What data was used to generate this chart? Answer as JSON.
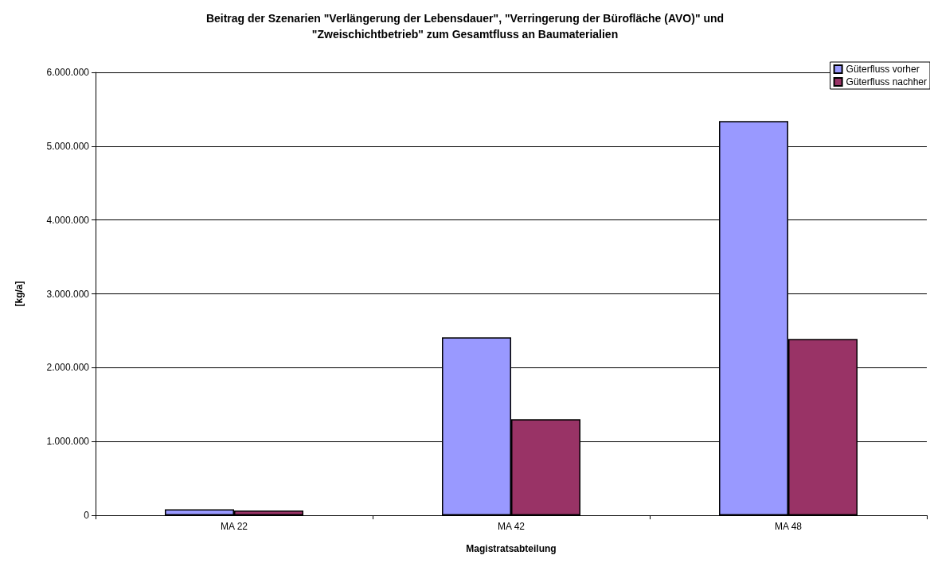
{
  "chart_data": {
    "type": "bar",
    "title": "Beitrag der Szenarien \"Verlängerung der Lebensdauer\", \"Verringerung der Bürofläche (AVO)\" und\n\"Zweischichtbetrieb\" zum Gesamtfluss an Baumaterialien",
    "xlabel": "Magistratsabteilung",
    "ylabel": "[kg/a]",
    "categories": [
      "MA 22",
      "MA 42",
      "MA 48"
    ],
    "series": [
      {
        "name": "Güterfluss vorher",
        "color": "#9999ff",
        "values": [
          80000,
          2410000,
          5340000
        ]
      },
      {
        "name": "Güterfluss nachher",
        "color": "#993366",
        "values": [
          65000,
          1300000,
          2390000
        ]
      }
    ],
    "ylim": [
      0,
      6000000
    ],
    "yticks": [
      0,
      {
        "value": 1000000,
        "label": "1.000.000"
      },
      {
        "value": 2000000,
        "label": "2.000.000"
      },
      {
        "value": 3000000,
        "label": "3.000.000"
      },
      {
        "value": 4000000,
        "label": "4.000.000"
      },
      {
        "value": 5000000,
        "label": "5.000.000"
      },
      {
        "value": 6000000,
        "label": "6.000.000"
      }
    ],
    "grid": "y",
    "legend": "top right"
  }
}
